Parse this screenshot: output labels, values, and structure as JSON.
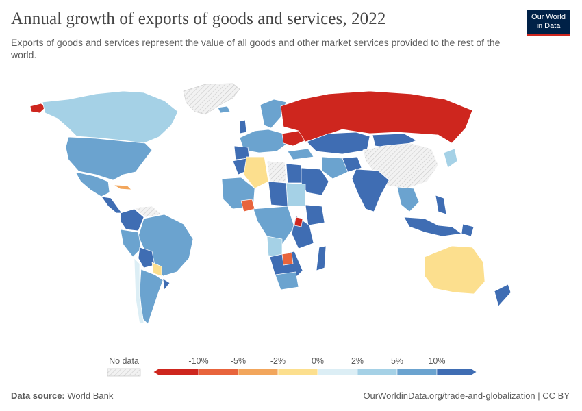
{
  "header": {
    "title": "Annual growth of exports of goods and services, 2022",
    "subtitle": "Exports of goods and services represent the value of all goods and other market services provided to the rest of the world."
  },
  "logo": {
    "line1": "Our World",
    "line2": "in Data"
  },
  "legend": {
    "no_data_label": "No data",
    "bins": [
      {
        "color": "#ce261e"
      },
      {
        "color": "#e8643c"
      },
      {
        "color": "#f2a65c"
      },
      {
        "color": "#fcdf8e"
      },
      {
        "color": "#dceef5"
      },
      {
        "color": "#a5d1e6"
      },
      {
        "color": "#6ba3cf"
      },
      {
        "color": "#3f6db3"
      }
    ],
    "tick_labels": [
      "-10%",
      "-5%",
      "-2%",
      "0%",
      "2%",
      "5%",
      "10%"
    ]
  },
  "footer": {
    "source_label": "Data source:",
    "source_value": "World Bank",
    "url": "OurWorldinData.org/trade-and-globalization | CC BY"
  },
  "colors": {
    "no_data": "#e0e0e0",
    "border": "#ffffff",
    "text": "#5b5b5b"
  }
}
